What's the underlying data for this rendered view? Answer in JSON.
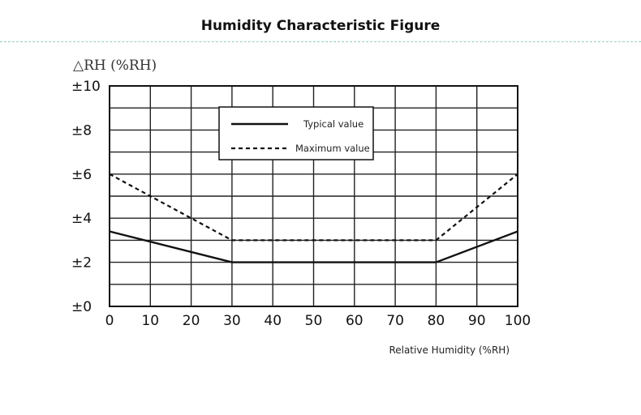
{
  "header": {
    "title": "Humidity Characteristic Figure"
  },
  "chart_data": {
    "type": "line",
    "title": "Humidity Characteristic Figure",
    "ylabel": "△RH (%RH)",
    "xlabel": "Relative Humidity (%RH)",
    "x": [
      0,
      30,
      80,
      100
    ],
    "xlim": [
      0,
      100
    ],
    "ylim": [
      0,
      10
    ],
    "x_ticks": [
      0,
      10,
      20,
      30,
      40,
      50,
      60,
      70,
      80,
      90,
      100
    ],
    "x_tick_labels": [
      "0",
      "10",
      "20",
      "30",
      "40",
      "50",
      "60",
      "70",
      "80",
      "90",
      "100"
    ],
    "y_ticks": [
      0,
      2,
      4,
      6,
      8,
      10
    ],
    "y_tick_labels": [
      "±0",
      "±2",
      "±4",
      "±6",
      "±8",
      "±10"
    ],
    "grid": true,
    "grid_y_step": 1,
    "legend_position": "top-center",
    "series": [
      {
        "name": "Typical value",
        "style": "solid",
        "x": [
          0,
          30,
          80,
          100
        ],
        "values": [
          3.4,
          2.0,
          2.0,
          3.4
        ]
      },
      {
        "name": "Maximum value",
        "style": "dashed",
        "x": [
          0,
          30,
          80,
          100
        ],
        "values": [
          6.0,
          3.0,
          3.0,
          6.0
        ]
      }
    ]
  }
}
